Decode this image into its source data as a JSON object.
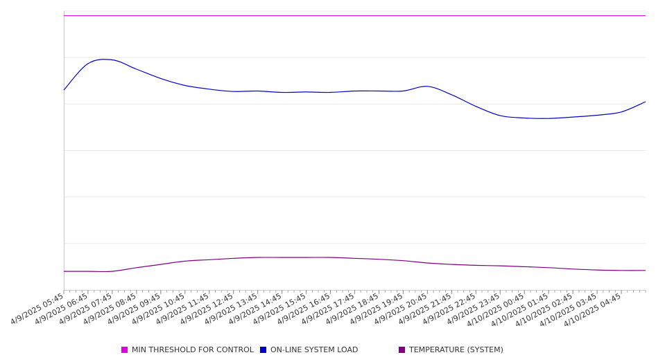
{
  "chart_data": {
    "type": "line",
    "x_ticks": [
      "4/9/2025 05:45",
      "4/9/2025 06:45",
      "4/9/2025 07:45",
      "4/9/2025 08:45",
      "4/9/2025 09:45",
      "4/9/2025 10:45",
      "4/9/2025 11:45",
      "4/9/2025 12:45",
      "4/9/2025 13:45",
      "4/9/2025 14:45",
      "4/9/2025 15:45",
      "4/9/2025 16:45",
      "4/9/2025 17:45",
      "4/9/2025 18:45",
      "4/9/2025 19:45",
      "4/9/2025 20:45",
      "4/9/2025 21:45",
      "4/9/2025 22:45",
      "4/9/2025 23:45",
      "4/10/2025 00:45",
      "4/10/2025 01:45",
      "4/10/2025 02:45",
      "4/10/2025 03:45",
      "4/10/2025 04:45"
    ],
    "x_range": [
      "4/9/2025 05:45",
      "4/10/2025 05:45"
    ],
    "y_range": [
      0,
      6
    ],
    "grid": "horizontal",
    "legend_position": "bottom",
    "series": [
      {
        "name": "MIN THRESHOLD FOR CONTROL",
        "color": "#e000e0",
        "points": [
          [
            "4/9/2025 05:45",
            5.9
          ],
          [
            "4/10/2025 05:45",
            5.9
          ]
        ]
      },
      {
        "name": "ON-LINE SYSTEM LOAD",
        "color": "#0000cc",
        "points": [
          [
            "4/9/2025 05:45",
            4.3
          ],
          [
            "4/9/2025 06:45",
            4.87
          ],
          [
            "4/9/2025 07:45",
            4.95
          ],
          [
            "4/9/2025 08:45",
            4.75
          ],
          [
            "4/9/2025 09:45",
            4.55
          ],
          [
            "4/9/2025 10:45",
            4.4
          ],
          [
            "4/9/2025 11:45",
            4.32
          ],
          [
            "4/9/2025 12:45",
            4.27
          ],
          [
            "4/9/2025 13:45",
            4.28
          ],
          [
            "4/9/2025 14:45",
            4.25
          ],
          [
            "4/9/2025 15:45",
            4.26
          ],
          [
            "4/9/2025 16:45",
            4.25
          ],
          [
            "4/9/2025 17:45",
            4.28
          ],
          [
            "4/9/2025 18:45",
            4.28
          ],
          [
            "4/9/2025 19:45",
            4.28
          ],
          [
            "4/9/2025 20:45",
            4.38
          ],
          [
            "4/9/2025 21:45",
            4.2
          ],
          [
            "4/9/2025 22:45",
            3.95
          ],
          [
            "4/9/2025 23:45",
            3.75
          ],
          [
            "4/10/2025 00:45",
            3.7
          ],
          [
            "4/10/2025 01:45",
            3.69
          ],
          [
            "4/10/2025 02:45",
            3.72
          ],
          [
            "4/10/2025 03:45",
            3.76
          ],
          [
            "4/10/2025 04:45",
            3.83
          ],
          [
            "4/10/2025 05:45",
            4.05
          ]
        ]
      },
      {
        "name": "TEMPERATURE (SYSTEM)",
        "color": "#800080",
        "points": [
          [
            "4/9/2025 05:45",
            0.4
          ],
          [
            "4/9/2025 06:45",
            0.4
          ],
          [
            "4/9/2025 07:45",
            0.4
          ],
          [
            "4/9/2025 08:45",
            0.48
          ],
          [
            "4/9/2025 09:45",
            0.55
          ],
          [
            "4/9/2025 10:45",
            0.62
          ],
          [
            "4/9/2025 11:45",
            0.65
          ],
          [
            "4/9/2025 12:45",
            0.68
          ],
          [
            "4/9/2025 13:45",
            0.7
          ],
          [
            "4/9/2025 14:45",
            0.7
          ],
          [
            "4/9/2025 15:45",
            0.7
          ],
          [
            "4/9/2025 16:45",
            0.7
          ],
          [
            "4/9/2025 17:45",
            0.68
          ],
          [
            "4/9/2025 18:45",
            0.66
          ],
          [
            "4/9/2025 19:45",
            0.63
          ],
          [
            "4/9/2025 20:45",
            0.58
          ],
          [
            "4/9/2025 21:45",
            0.55
          ],
          [
            "4/9/2025 22:45",
            0.53
          ],
          [
            "4/9/2025 23:45",
            0.52
          ],
          [
            "4/10/2025 00:45",
            0.5
          ],
          [
            "4/10/2025 01:45",
            0.48
          ],
          [
            "4/10/2025 02:45",
            0.45
          ],
          [
            "4/10/2025 03:45",
            0.43
          ],
          [
            "4/10/2025 04:45",
            0.42
          ],
          [
            "4/10/2025 05:45",
            0.42
          ]
        ]
      }
    ]
  },
  "legend": {
    "items": [
      {
        "label": "MIN THRESHOLD FOR CONTROL",
        "color": "#e000e0"
      },
      {
        "label": "ON-LINE SYSTEM LOAD",
        "color": "#0000cc"
      },
      {
        "label": "TEMPERATURE (SYSTEM)",
        "color": "#800080"
      }
    ]
  }
}
